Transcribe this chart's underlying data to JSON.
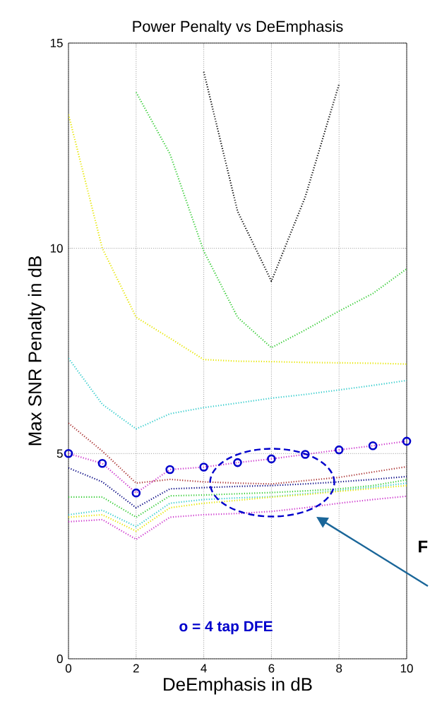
{
  "chart_data": {
    "type": "line",
    "title": "Power Penalty vs DeEmphasis",
    "xlabel": "DeEmphasis in dB",
    "ylabel": "Max SNR Penalty in dB",
    "x": [
      0,
      1,
      2,
      3,
      4,
      5,
      6,
      7,
      8,
      9,
      10
    ],
    "series": [
      {
        "color": "#000000",
        "values": [
          null,
          null,
          null,
          null,
          14.3,
          10.9,
          9.2,
          11.25,
          14.0,
          null,
          null
        ]
      },
      {
        "color": "#33cc33",
        "values": [
          null,
          null,
          13.8,
          12.3,
          9.93,
          8.32,
          7.58,
          8.01,
          8.47,
          8.9,
          9.5
        ]
      },
      {
        "color": "#e6e600",
        "values": [
          13.26,
          10.0,
          8.32,
          7.81,
          7.29,
          7.25,
          7.24,
          7.22,
          7.21,
          7.2,
          7.18
        ]
      },
      {
        "color": "#33cccc",
        "values": [
          7.32,
          6.2,
          5.6,
          5.97,
          6.12,
          6.23,
          6.35,
          6.44,
          6.55,
          6.66,
          6.78
        ]
      },
      {
        "color": "#cc33cc",
        "values": [
          5.0,
          4.76,
          4.04,
          4.61,
          4.67,
          4.78,
          4.87,
          4.98,
          5.09,
          5.19,
          5.3
        ]
      },
      {
        "color": "#aa3333",
        "values": [
          5.74,
          5.06,
          4.28,
          4.37,
          4.31,
          4.28,
          4.26,
          4.34,
          4.42,
          4.55,
          4.68
        ]
      },
      {
        "color": "#000080",
        "values": [
          4.65,
          4.31,
          3.68,
          4.14,
          4.17,
          4.2,
          4.22,
          4.26,
          4.31,
          4.37,
          4.44
        ]
      },
      {
        "color": "#33cc33",
        "values": [
          3.94,
          3.94,
          3.45,
          3.97,
          3.99,
          4.02,
          4.05,
          4.09,
          4.14,
          4.22,
          4.36
        ]
      },
      {
        "color": "#33cccc",
        "values": [
          3.51,
          3.62,
          3.22,
          3.79,
          3.88,
          3.92,
          3.95,
          4.02,
          4.1,
          4.18,
          4.28
        ]
      },
      {
        "color": "#e6e600",
        "values": [
          3.45,
          3.51,
          3.11,
          3.68,
          3.79,
          3.86,
          3.94,
          4.0,
          4.08,
          4.15,
          4.22
        ]
      },
      {
        "color": "#cc33cc",
        "values": [
          3.34,
          3.39,
          2.91,
          3.45,
          3.51,
          3.54,
          3.59,
          3.68,
          3.79,
          3.88,
          3.96
        ]
      },
      {
        "type": "scatter",
        "marker": "circle",
        "color": "#0000cc",
        "values": [
          5.0,
          4.76,
          4.04,
          4.61,
          4.67,
          4.78,
          4.87,
          4.98,
          5.09,
          5.19,
          5.3
        ]
      }
    ],
    "xlim": [
      0,
      10
    ],
    "ylim": [
      0,
      15
    ],
    "xticks": [
      0,
      2,
      4,
      6,
      8,
      10
    ],
    "yticks": [
      0,
      5,
      10,
      15
    ],
    "grid": true,
    "marker": "none",
    "line_style": "dotted",
    "annotations": [
      "o = 4 tap DFE",
      "F"
    ]
  }
}
